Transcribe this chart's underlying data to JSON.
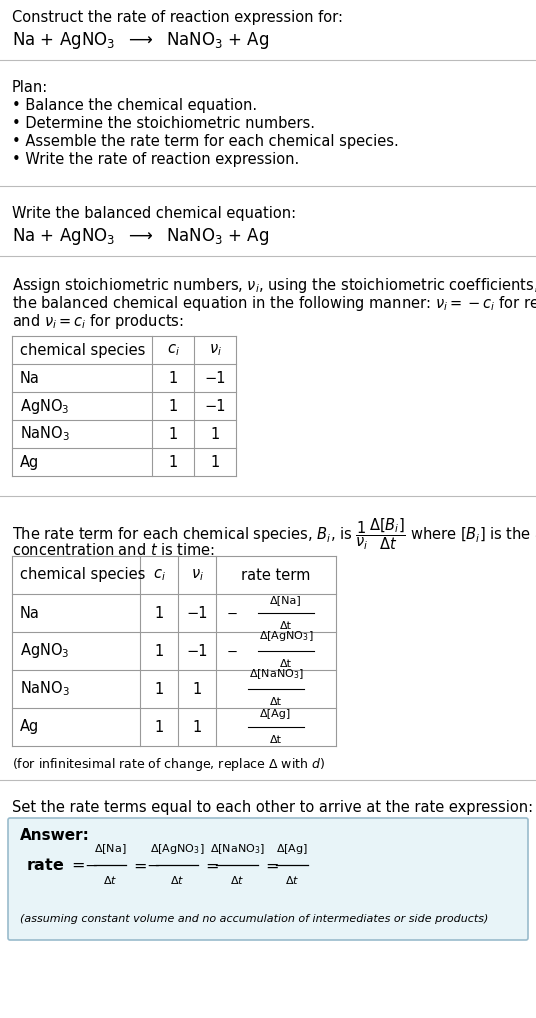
{
  "title_line1": "Construct the rate of reaction expression for:",
  "bg_color": "#ffffff",
  "section_divider_color": "#bbbbbb",
  "plan_header": "Plan:",
  "plan_items": [
    "• Balance the chemical equation.",
    "• Determine the stoichiometric numbers.",
    "• Assemble the rate term for each chemical species.",
    "• Write the rate of reaction expression."
  ],
  "balanced_header": "Write the balanced chemical equation:",
  "stoich_lines": [
    "Assign stoichiometric numbers, $\\nu_i$, using the stoichiometric coefficients, $c_i$, from",
    "the balanced chemical equation in the following manner: $\\nu_i = -c_i$ for reactants",
    "and $\\nu_i = c_i$ for products:"
  ],
  "table1_headers": [
    "chemical species",
    "$c_i$",
    "$\\nu_i$"
  ],
  "table1_rows": [
    [
      "Na",
      "1",
      "−1"
    ],
    [
      "AgNO$_3$",
      "1",
      "−1"
    ],
    [
      "NaNO$_3$",
      "1",
      "1"
    ],
    [
      "Ag",
      "1",
      "1"
    ]
  ],
  "table2_headers": [
    "chemical species",
    "$c_i$",
    "$\\nu_i$",
    "rate term"
  ],
  "table2_rows": [
    [
      "Na",
      "1",
      "−1"
    ],
    [
      "AgNO$_3$",
      "1",
      "−1"
    ],
    [
      "NaNO$_3$",
      "1",
      "1"
    ],
    [
      "Ag",
      "1",
      "1"
    ]
  ],
  "rate_terms": [
    [
      "$-$",
      "Δ[Na]",
      "Δt"
    ],
    [
      "$-$",
      "Δ[AgNO$_3$]",
      "Δt"
    ],
    [
      "",
      "Δ[NaNO$_3$]",
      "Δt"
    ],
    [
      "",
      "Δ[Ag]",
      "Δt"
    ]
  ],
  "infinitesimal_note": "(for infinitesimal rate of change, replace Δ with $d$)",
  "set_equal_header": "Set the rate terms equal to each other to arrive at the rate expression:",
  "answer_box_color": "#e8f4f8",
  "answer_box_border": "#99bbcc",
  "answer_label": "Answer:",
  "answer_note": "(assuming constant volume and no accumulation of intermediates or side products)",
  "text_color": "#000000",
  "table_border_color": "#999999",
  "font_size": 10.5
}
